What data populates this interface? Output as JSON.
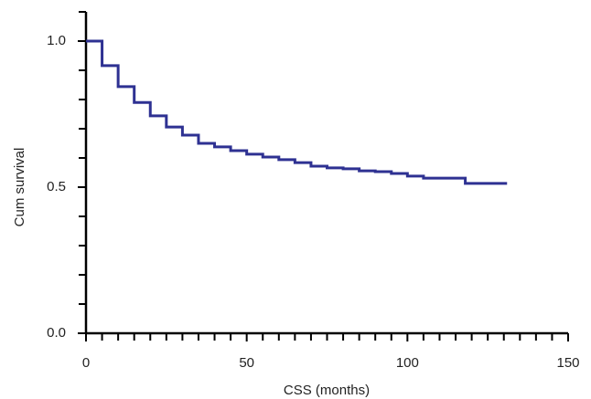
{
  "chart_data": {
    "type": "step",
    "x_label": "CSS (months)",
    "y_label": "Cum survival",
    "color": "#2e3192",
    "x": [
      0,
      5,
      10,
      15,
      20,
      25,
      30,
      35,
      40,
      45,
      50,
      55,
      60,
      65,
      70,
      75,
      80,
      85,
      90,
      95,
      100,
      105,
      110,
      117,
      118,
      131
    ],
    "values": [
      1.0,
      0.916,
      0.844,
      0.79,
      0.744,
      0.706,
      0.678,
      0.65,
      0.638,
      0.625,
      0.613,
      0.603,
      0.594,
      0.584,
      0.572,
      0.566,
      0.563,
      0.556,
      0.553,
      0.547,
      0.538,
      0.531,
      0.531,
      0.531,
      0.513,
      0.513
    ],
    "xlim": [
      0,
      150
    ],
    "ylim": [
      0,
      1.1
    ],
    "xticks": [
      0,
      50,
      100,
      150
    ],
    "xminor": [
      5,
      10,
      15,
      20,
      25,
      30,
      35,
      40,
      45,
      55,
      60,
      65,
      70,
      75,
      80,
      85,
      90,
      95,
      105,
      110,
      115,
      120,
      125,
      130,
      135,
      140,
      145
    ],
    "yticks": [
      {
        "value": 0,
        "label": "0.0"
      },
      0.5,
      {
        "value": 1,
        "label": "1.0"
      }
    ],
    "yminor": [
      0.1,
      0.2,
      0.3,
      0.4,
      0.6,
      0.7,
      0.8,
      0.9,
      1.1
    ]
  }
}
